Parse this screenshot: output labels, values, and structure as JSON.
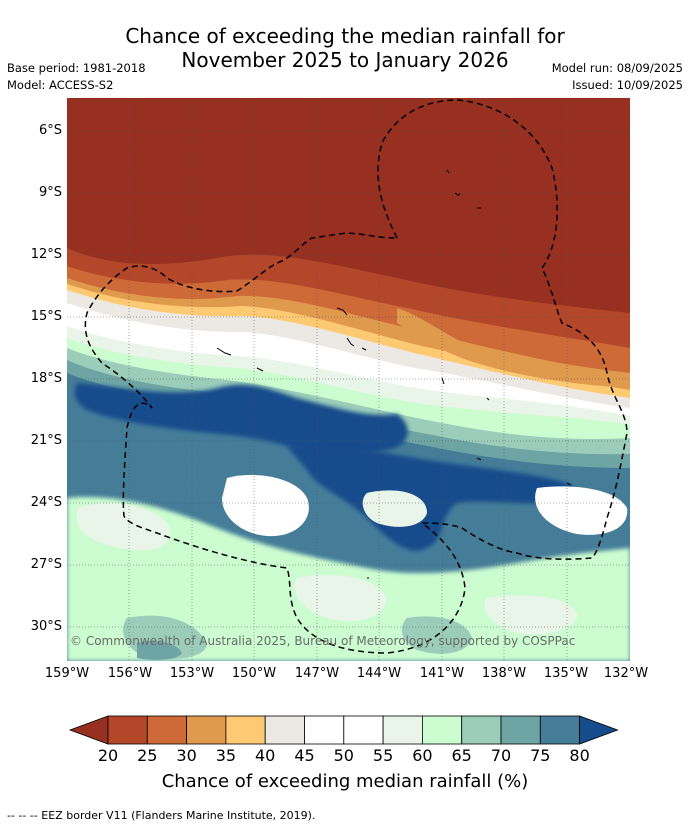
{
  "title": {
    "line1": "Chance of exceeding the median rainfall for",
    "line2": "November 2025 to January 2026"
  },
  "meta": {
    "base_period": "Base period: 1981-2018",
    "model": "Model: ACCESS-S2",
    "model_run": "Model run: 08/09/2025",
    "issued": "Issued: 10/09/2025"
  },
  "map": {
    "lat_labels": [
      "6°S",
      "9°S",
      "12°S",
      "15°S",
      "18°S",
      "21°S",
      "24°S",
      "27°S",
      "30°S"
    ],
    "lon_labels": [
      "159°W",
      "156°W",
      "153°W",
      "150°W",
      "147°W",
      "144°W",
      "141°W",
      "138°W",
      "135°W",
      "132°W"
    ],
    "copyright": "© Commonwealth of Australia 2025, Bureau of Meteorology, supported by COSPPac"
  },
  "colorbar": {
    "labels": [
      "20",
      "25",
      "30",
      "35",
      "40",
      "45",
      "50",
      "55",
      "60",
      "65",
      "70",
      "75",
      "80"
    ],
    "colors": [
      "#973021",
      "#b4462a",
      "#cd6a37",
      "#e09a4d",
      "#fdc972",
      "#ece9e4",
      "#ffffff",
      "#ffffff",
      "#eaf5ea",
      "#ccfdd0",
      "#9ccdba",
      "#6ea5a4",
      "#457d99",
      "#144c8c"
    ],
    "title": "Chance of exceeding median rainfall (%)"
  },
  "footnote": "--  --  -- EEZ border V11 (Flanders Marine Institute, 2019)."
}
